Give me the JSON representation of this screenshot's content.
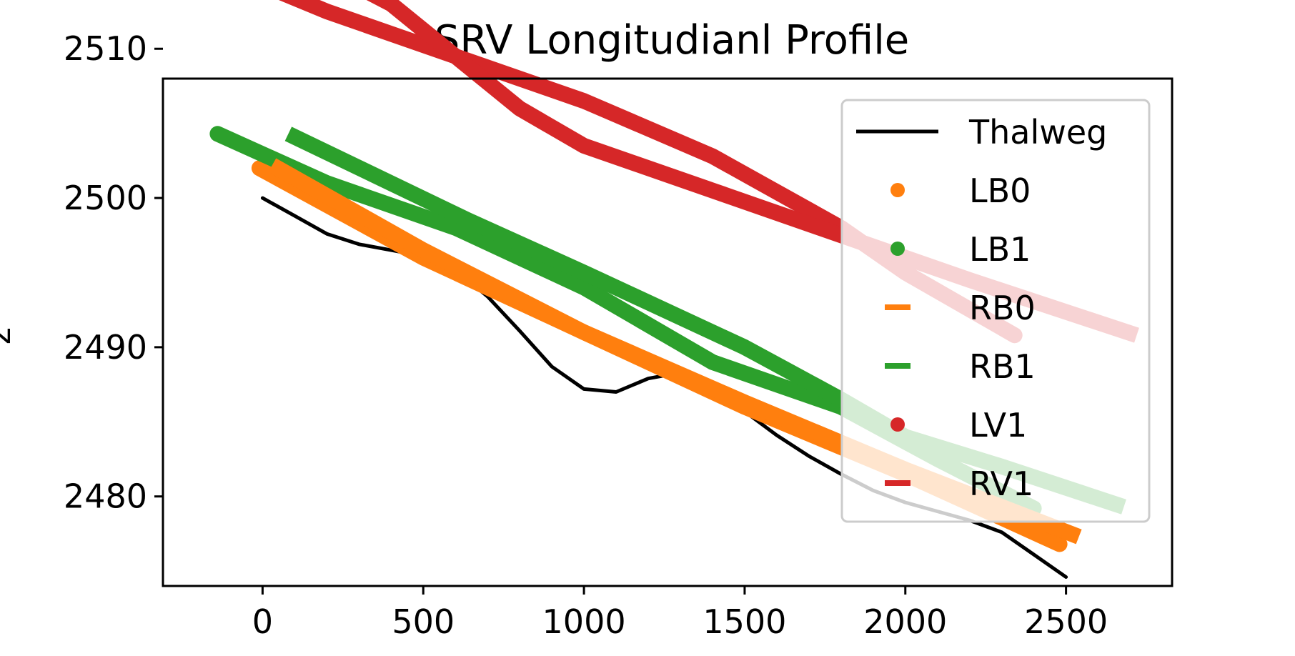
{
  "chart_data": {
    "type": "line",
    "title": "SRV Longitudianl Profile",
    "xlabel": "",
    "ylabel": "z",
    "xlim": [
      -310,
      2830
    ],
    "ylim": [
      2474,
      2508
    ],
    "xticks": [
      0,
      500,
      1000,
      1500,
      2000,
      2500
    ],
    "yticks": [
      2480,
      2490,
      2500,
      2510
    ],
    "grid": false,
    "legend_position": "top-right",
    "series": [
      {
        "name": "Thalweg",
        "color": "#000000",
        "marker": "line",
        "x": [
          0,
          100,
          200,
          300,
          400,
          500,
          600,
          700,
          800,
          900,
          1000,
          1100,
          1200,
          1300,
          1400,
          1500,
          1600,
          1700,
          1800,
          1900,
          2000,
          2100,
          2200,
          2300,
          2400,
          2500
        ],
        "y": [
          2500.0,
          2498.8,
          2497.6,
          2496.9,
          2496.5,
          2496.1,
          2495.2,
          2493.4,
          2491.1,
          2488.7,
          2487.2,
          2487.0,
          2487.9,
          2488.3,
          2487.3,
          2485.7,
          2484.1,
          2482.7,
          2481.5,
          2480.4,
          2479.6,
          2479.0,
          2478.4,
          2477.6,
          2476.1,
          2474.6
        ]
      },
      {
        "name": "LB0",
        "color": "#ff7f0e",
        "marker": "dot",
        "x": [
          -10,
          500,
          1000,
          1500,
          2000,
          2480
        ],
        "y": [
          2502.0,
          2496.0,
          2491.0,
          2486.0,
          2481.5,
          2476.8
        ]
      },
      {
        "name": "LB1",
        "color": "#2ca02c",
        "marker": "dot",
        "x": [
          -140,
          200,
          600,
          1000,
          1400,
          1800,
          2100,
          2400
        ],
        "y": [
          2504.3,
          2501.0,
          2498.0,
          2494.0,
          2489.0,
          2486.0,
          2482.5,
          2479.2
        ]
      },
      {
        "name": "RB0",
        "color": "#ff7f0e",
        "marker": "dash",
        "x": [
          30,
          500,
          1000,
          1500,
          2000,
          2540
        ],
        "y": [
          2502.2,
          2496.5,
          2491.0,
          2486.3,
          2481.8,
          2477.3
        ]
      },
      {
        "name": "RB1",
        "color": "#2ca02c",
        "marker": "dash",
        "x": [
          80,
          640,
          1000,
          1500,
          1800,
          2000,
          2300,
          2680
        ],
        "y": [
          2504.3,
          2498.5,
          2495.0,
          2490.0,
          2486.5,
          2484.0,
          2482.0,
          2479.3
        ]
      },
      {
        "name": "LV1",
        "color": "#d62728",
        "marker": "dot",
        "x": [
          -170,
          200,
          600,
          1000,
          1400,
          1800,
          2000,
          2340
        ],
        "y": [
          2515.8,
          2512.5,
          2509.5,
          2506.5,
          2502.8,
          2498.0,
          2495.0,
          2490.8
        ]
      },
      {
        "name": "RV1",
        "color": "#d62728",
        "marker": "dash",
        "x": [
          150,
          400,
          600,
          800,
          1000,
          1400,
          1800,
          2200,
          2720
        ],
        "y": [
          2515.8,
          2513.0,
          2509.5,
          2506.0,
          2503.5,
          2500.5,
          2497.5,
          2494.5,
          2490.8
        ]
      }
    ]
  }
}
